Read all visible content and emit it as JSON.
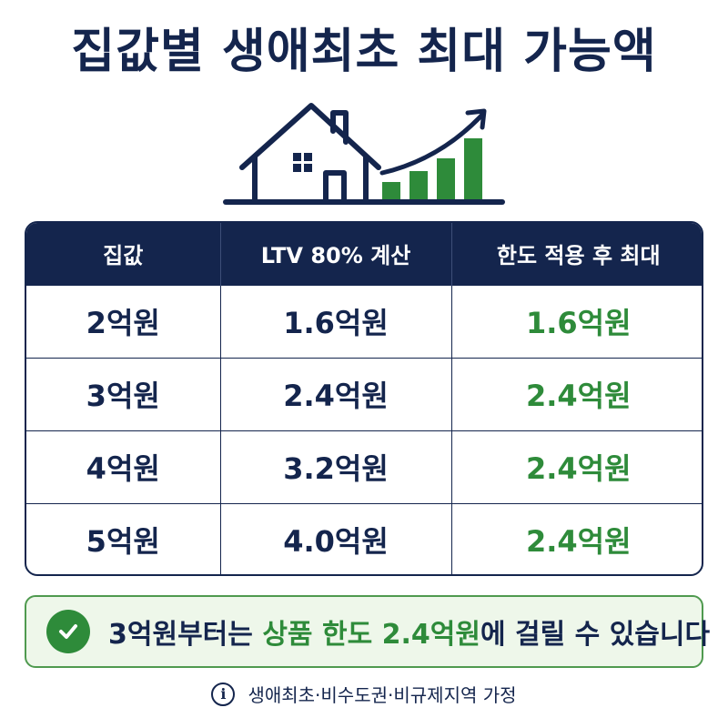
{
  "title": "집값별 생애최초 최대 가능액",
  "table": {
    "headers": [
      "집값",
      "LTV 80% 계산",
      "한도 적용 후 최대"
    ],
    "rows": [
      [
        "2억원",
        "1.6억원",
        "1.6억원"
      ],
      [
        "3억원",
        "2.4억원",
        "2.4억원"
      ],
      [
        "4억원",
        "3.2억원",
        "2.4억원"
      ],
      [
        "5억원",
        "4.0억원",
        "2.4억원"
      ]
    ]
  },
  "notice": {
    "icon": "check-circle-icon",
    "part1": "3억원부터는 ",
    "highlight": "상품 한도 2.4억원",
    "part2": "에 걸릴 수 있습니다"
  },
  "footnote": {
    "icon": "info-icon",
    "text": "생애최초·비수도권·비규제지역 가정"
  },
  "illustration": {
    "icons": [
      "house-icon",
      "growth-bars-icon",
      "trend-arrow-icon"
    ]
  },
  "colors": {
    "navy": "#14254d",
    "green": "#2e8b3a",
    "notice_bg": "#eef7ea"
  }
}
